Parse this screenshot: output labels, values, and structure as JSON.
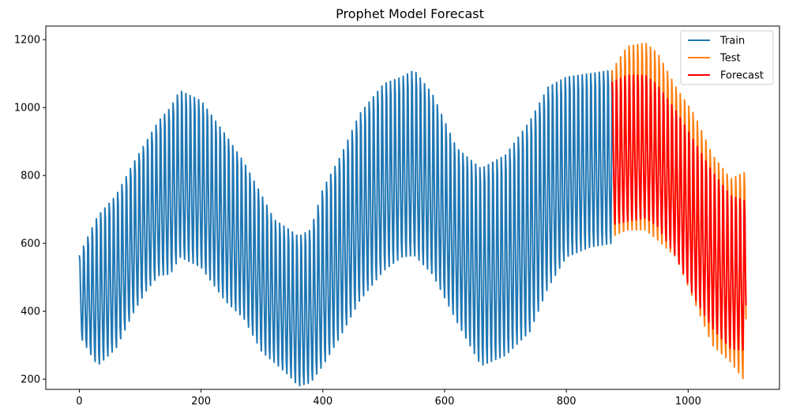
{
  "chart_data": {
    "type": "line",
    "title": "Prophet Model Forecast",
    "xlabel": "",
    "ylabel": "",
    "xlim": [
      -55,
      1150
    ],
    "ylim": [
      170,
      1240
    ],
    "x_ticks": [
      0,
      200,
      400,
      600,
      800,
      1000
    ],
    "y_ticks": [
      200,
      400,
      600,
      800,
      1000,
      1200
    ],
    "grid": false,
    "legend_position": "top-right",
    "weekly_period": 7,
    "series": [
      {
        "name": "Train",
        "color": "#1f77b4",
        "x_range": [
          0,
          875
        ],
        "upper_envelope": [
          [
            0,
            565
          ],
          [
            30,
            680
          ],
          [
            60,
            740
          ],
          [
            90,
            840
          ],
          [
            110,
            900
          ],
          [
            130,
            960
          ],
          [
            150,
            1000
          ],
          [
            165,
            1050
          ],
          [
            200,
            1020
          ],
          [
            240,
            920
          ],
          [
            270,
            840
          ],
          [
            300,
            740
          ],
          [
            320,
            670
          ],
          [
            345,
            640
          ],
          [
            360,
            620
          ],
          [
            380,
            640
          ],
          [
            400,
            760
          ],
          [
            430,
            860
          ],
          [
            460,
            980
          ],
          [
            500,
            1070
          ],
          [
            530,
            1090
          ],
          [
            550,
            1110
          ],
          [
            580,
            1040
          ],
          [
            620,
            880
          ],
          [
            660,
            820
          ],
          [
            700,
            860
          ],
          [
            740,
            960
          ],
          [
            770,
            1060
          ],
          [
            800,
            1090
          ],
          [
            840,
            1100
          ],
          [
            875,
            1110
          ]
        ],
        "lower_envelope": [
          [
            0,
            330
          ],
          [
            30,
            240
          ],
          [
            60,
            290
          ],
          [
            90,
            400
          ],
          [
            110,
            460
          ],
          [
            130,
            505
          ],
          [
            150,
            510
          ],
          [
            165,
            560
          ],
          [
            200,
            530
          ],
          [
            240,
            430
          ],
          [
            270,
            380
          ],
          [
            300,
            280
          ],
          [
            320,
            250
          ],
          [
            345,
            210
          ],
          [
            360,
            180
          ],
          [
            380,
            190
          ],
          [
            400,
            240
          ],
          [
            430,
            330
          ],
          [
            460,
            430
          ],
          [
            500,
            520
          ],
          [
            530,
            560
          ],
          [
            550,
            565
          ],
          [
            580,
            510
          ],
          [
            620,
            370
          ],
          [
            660,
            240
          ],
          [
            700,
            270
          ],
          [
            740,
            340
          ],
          [
            770,
            470
          ],
          [
            800,
            560
          ],
          [
            840,
            590
          ],
          [
            875,
            600
          ]
        ]
      },
      {
        "name": "Test",
        "color": "#ff7f0e",
        "x_range": [
          875,
          1095
        ],
        "upper_envelope": [
          [
            875,
            1110
          ],
          [
            900,
            1180
          ],
          [
            930,
            1190
          ],
          [
            950,
            1160
          ],
          [
            980,
            1060
          ],
          [
            1010,
            980
          ],
          [
            1040,
            860
          ],
          [
            1070,
            790
          ],
          [
            1095,
            810
          ]
        ],
        "lower_envelope": [
          [
            875,
            620
          ],
          [
            900,
            640
          ],
          [
            930,
            640
          ],
          [
            950,
            610
          ],
          [
            980,
            560
          ],
          [
            1010,
            430
          ],
          [
            1040,
            300
          ],
          [
            1070,
            250
          ],
          [
            1095,
            190
          ]
        ]
      },
      {
        "name": "Forecast",
        "color": "#ff0000",
        "x_range": [
          875,
          1095
        ],
        "upper_envelope": [
          [
            875,
            1075
          ],
          [
            900,
            1095
          ],
          [
            930,
            1095
          ],
          [
            950,
            1065
          ],
          [
            980,
            990
          ],
          [
            1010,
            900
          ],
          [
            1040,
            810
          ],
          [
            1070,
            740
          ],
          [
            1095,
            725
          ]
        ],
        "lower_envelope": [
          [
            875,
            655
          ],
          [
            900,
            665
          ],
          [
            930,
            675
          ],
          [
            950,
            650
          ],
          [
            980,
            560
          ],
          [
            1010,
            440
          ],
          [
            1040,
            350
          ],
          [
            1070,
            290
          ],
          [
            1095,
            285
          ]
        ]
      }
    ]
  }
}
